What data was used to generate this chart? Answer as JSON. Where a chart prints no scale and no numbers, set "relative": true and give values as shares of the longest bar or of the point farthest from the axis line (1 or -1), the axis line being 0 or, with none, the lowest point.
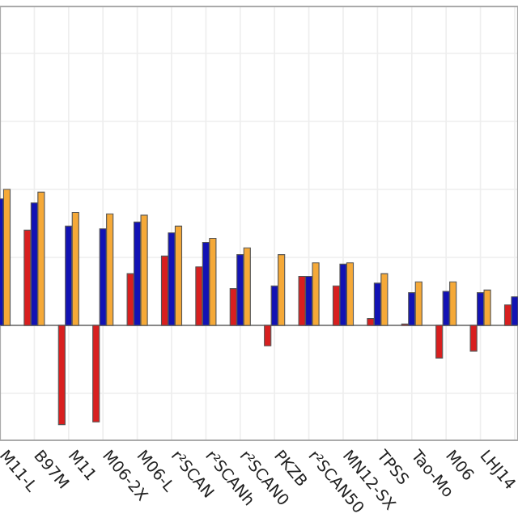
{
  "chart_data": {
    "type": "bar",
    "relative": true,
    "categories": [
      "M11-L",
      "B97M",
      "M11",
      "M06-2X",
      "M06-L",
      "r²SCAN",
      "r²SCANh",
      "r²SCAN0",
      "PKZB",
      "r²SCAN50",
      "MN12-SX",
      "TPSS",
      "Tao-Mo",
      "M06",
      "LHJ14",
      null
    ],
    "series": [
      {
        "color": "#d81f1f",
        "values": [
          null,
          0.7,
          -0.73,
          -0.71,
          0.38,
          0.51,
          0.43,
          0.27,
          -0.15,
          0.36,
          0.29,
          0.05,
          0.01,
          -0.24,
          -0.19,
          0.15
        ]
      },
      {
        "color": "#1212b4",
        "values": [
          0.93,
          0.9,
          0.73,
          0.71,
          0.76,
          0.68,
          0.61,
          0.52,
          0.29,
          0.36,
          0.45,
          0.31,
          0.24,
          0.25,
          0.24,
          0.21
        ]
      },
      {
        "color": "#f5a938",
        "values": [
          1.0,
          0.98,
          0.83,
          0.82,
          0.81,
          0.73,
          0.64,
          0.57,
          0.52,
          0.46,
          0.46,
          0.38,
          0.32,
          0.32,
          0.26,
          null
        ]
      }
    ],
    "grid": true
  }
}
